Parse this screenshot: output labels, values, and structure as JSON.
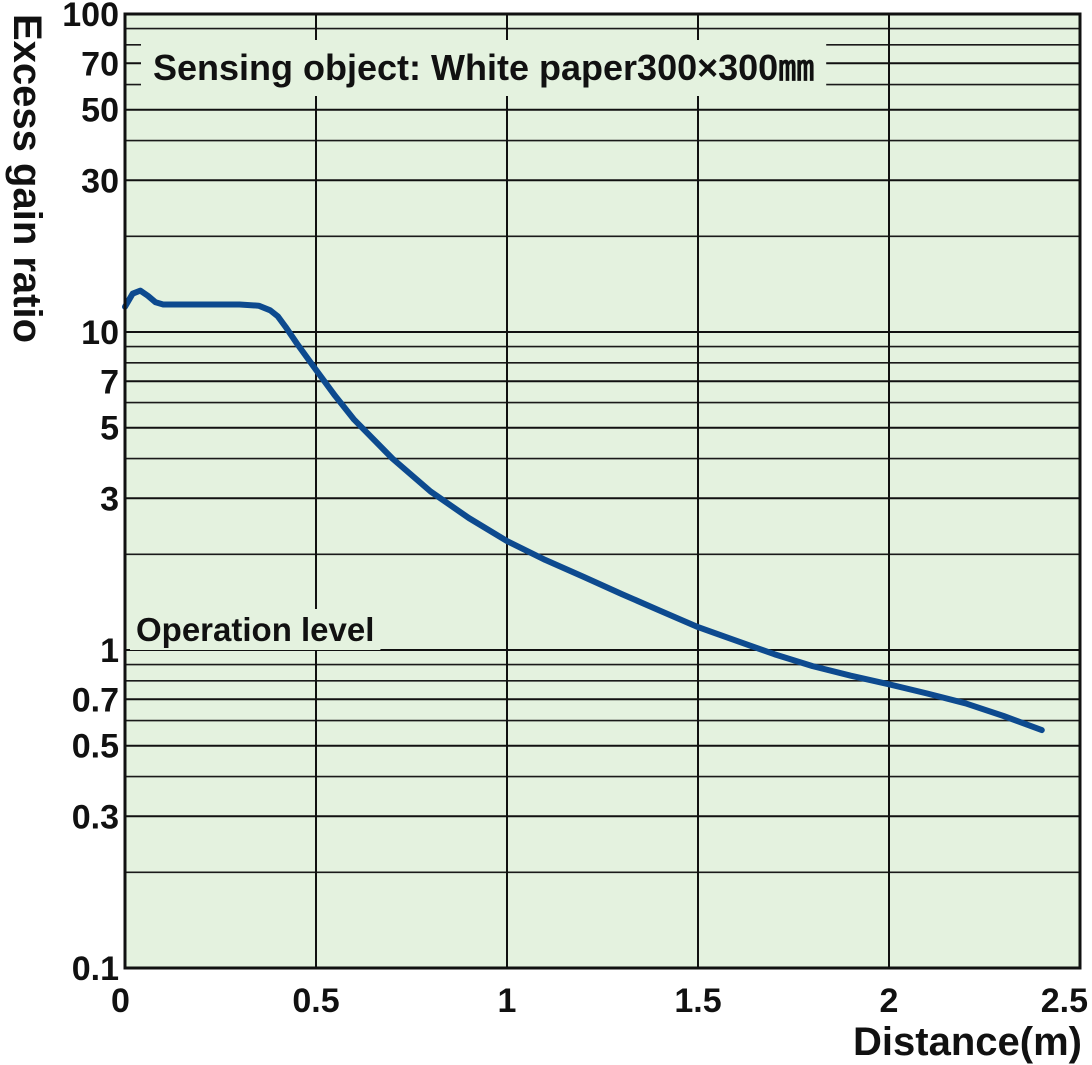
{
  "chart_data": {
    "type": "line",
    "ylabel": "Excess gain ratio",
    "xlabel": "Distance(m)",
    "xlim": [
      0,
      2.5
    ],
    "ylim": [
      0.1,
      100
    ],
    "y_scale": "log",
    "x_ticks": [
      0,
      0.5,
      1,
      1.5,
      2,
      2.5
    ],
    "x_tick_labels": [
      "0",
      "0.5",
      "1",
      "1.5",
      "2",
      "2.5"
    ],
    "y_ticks": [
      0.1,
      0.3,
      0.5,
      0.7,
      1,
      3,
      5,
      7,
      10,
      30,
      50,
      70,
      100
    ],
    "y_tick_labels": [
      "0.1",
      "0.3",
      "0.5",
      "0.7",
      "1",
      "3",
      "5",
      "7",
      "10",
      "30",
      "50",
      "70",
      "100"
    ],
    "y_minor_gridlines": [
      0.2,
      0.4,
      0.6,
      0.8,
      0.9,
      2,
      4,
      6,
      8,
      9,
      20,
      40,
      60,
      80,
      90
    ],
    "grid": true,
    "annotations": {
      "sensing_object": "Sensing object: White paper300×300㎜",
      "operation_level": "Operation level"
    },
    "series": [
      {
        "color": "#0d4a8f",
        "x": [
          0,
          0.02,
          0.04,
          0.06,
          0.08,
          0.1,
          0.15,
          0.2,
          0.25,
          0.3,
          0.35,
          0.38,
          0.4,
          0.42,
          0.45,
          0.5,
          0.55,
          0.6,
          0.7,
          0.8,
          0.9,
          1.0,
          1.1,
          1.2,
          1.3,
          1.4,
          1.5,
          1.6,
          1.7,
          1.8,
          1.9,
          2.0,
          2.1,
          2.2,
          2.3,
          2.4
        ],
        "y": [
          12.0,
          13.2,
          13.5,
          13.0,
          12.4,
          12.2,
          12.2,
          12.2,
          12.2,
          12.2,
          12.1,
          11.7,
          11.2,
          10.4,
          9.2,
          7.6,
          6.3,
          5.3,
          4.0,
          3.15,
          2.6,
          2.2,
          1.92,
          1.7,
          1.5,
          1.33,
          1.18,
          1.07,
          0.97,
          0.89,
          0.83,
          0.78,
          0.73,
          0.68,
          0.62,
          0.56
        ]
      }
    ]
  }
}
